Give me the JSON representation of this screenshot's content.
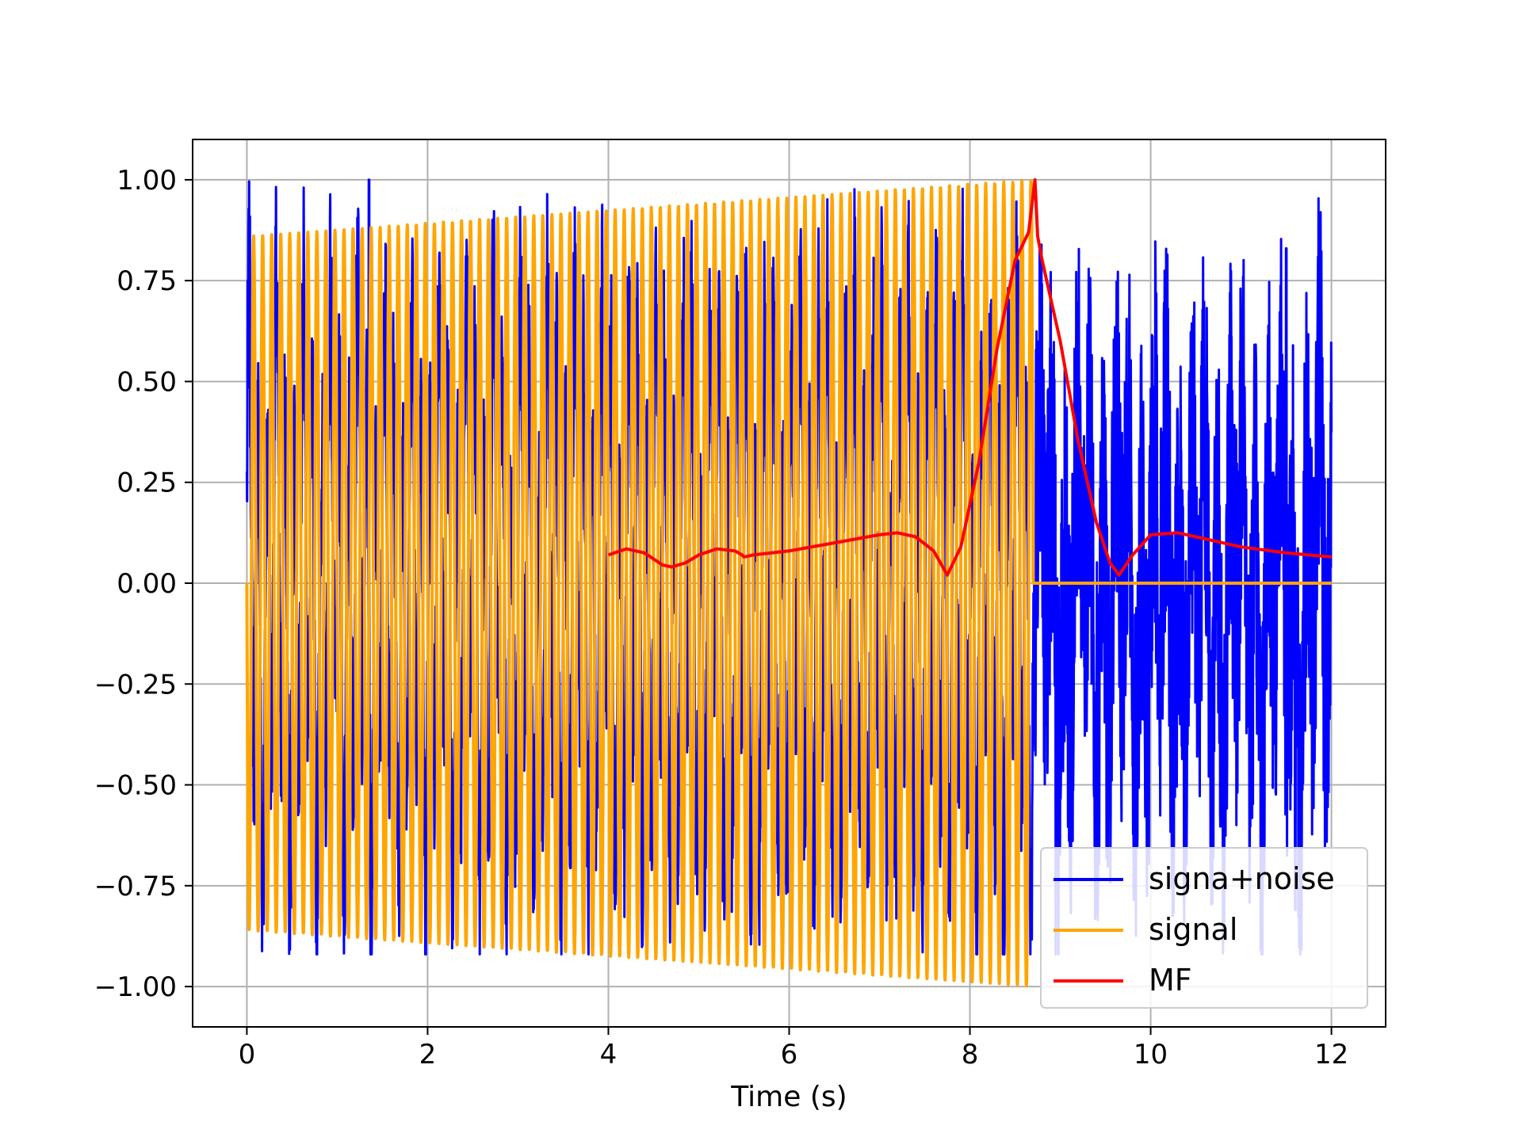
{
  "chart_data": {
    "type": "line",
    "title": "",
    "xlabel": "Time (s)",
    "ylabel": "",
    "xlim": [
      -0.6,
      12.6
    ],
    "ylim": [
      -1.1,
      1.1
    ],
    "grid": true,
    "legend_position": "lower-right",
    "xticks": [
      0,
      2,
      4,
      6,
      8,
      10,
      12
    ],
    "xtick_labels": [
      "0",
      "2",
      "4",
      "6",
      "8",
      "10",
      "12"
    ],
    "yticks": [
      1.0,
      0.75,
      0.5,
      0.25,
      0.0,
      -0.25,
      -0.5,
      -0.75,
      -1.0
    ],
    "ytick_labels": [
      "1.00",
      "0.75",
      "0.50",
      "0.25",
      "0.00",
      "−0.25",
      "−0.50",
      "−0.75",
      "−1.00"
    ],
    "series": [
      {
        "name": "signa+noise",
        "color": "#0000ff",
        "kind": "noisy",
        "x_range": [
          0,
          12
        ],
        "envelope_approx": [
          -0.92,
          1.0
        ],
        "peaks": [
          {
            "x": 1.35,
            "y": 1.0
          },
          {
            "x": 8.95,
            "y": 0.86
          },
          {
            "x": 11.5,
            "y": 0.83
          },
          {
            "x": 8.95,
            "y": -0.92
          },
          {
            "x": 11.6,
            "y": -0.81
          }
        ]
      },
      {
        "name": "signal",
        "color": "#ffa500",
        "kind": "chirp",
        "x_range": [
          0,
          12
        ],
        "active_range": [
          0,
          8.7
        ],
        "amplitude_start": 0.86,
        "amplitude_end": 1.0,
        "frequency_hz": 10
      },
      {
        "name": "MF",
        "color": "#ff0000",
        "kind": "line",
        "x": [
          4.0,
          4.2,
          4.4,
          4.6,
          4.7,
          4.85,
          5.0,
          5.2,
          5.4,
          5.48,
          5.5,
          5.6,
          6.0,
          6.5,
          7.0,
          7.2,
          7.4,
          7.6,
          7.75,
          7.9,
          8.1,
          8.3,
          8.5,
          8.65,
          8.72,
          8.75,
          8.8,
          9.0,
          9.2,
          9.4,
          9.55,
          9.65,
          9.8,
          10.0,
          10.3,
          10.6,
          11.0,
          11.5,
          12.0
        ],
        "y": [
          0.07,
          0.085,
          0.075,
          0.045,
          0.04,
          0.05,
          0.07,
          0.085,
          0.08,
          0.07,
          0.065,
          0.07,
          0.08,
          0.1,
          0.12,
          0.125,
          0.115,
          0.08,
          0.02,
          0.09,
          0.3,
          0.58,
          0.8,
          0.87,
          1.0,
          0.86,
          0.8,
          0.6,
          0.35,
          0.15,
          0.05,
          0.02,
          0.07,
          0.12,
          0.125,
          0.11,
          0.09,
          0.075,
          0.065
        ]
      }
    ]
  }
}
